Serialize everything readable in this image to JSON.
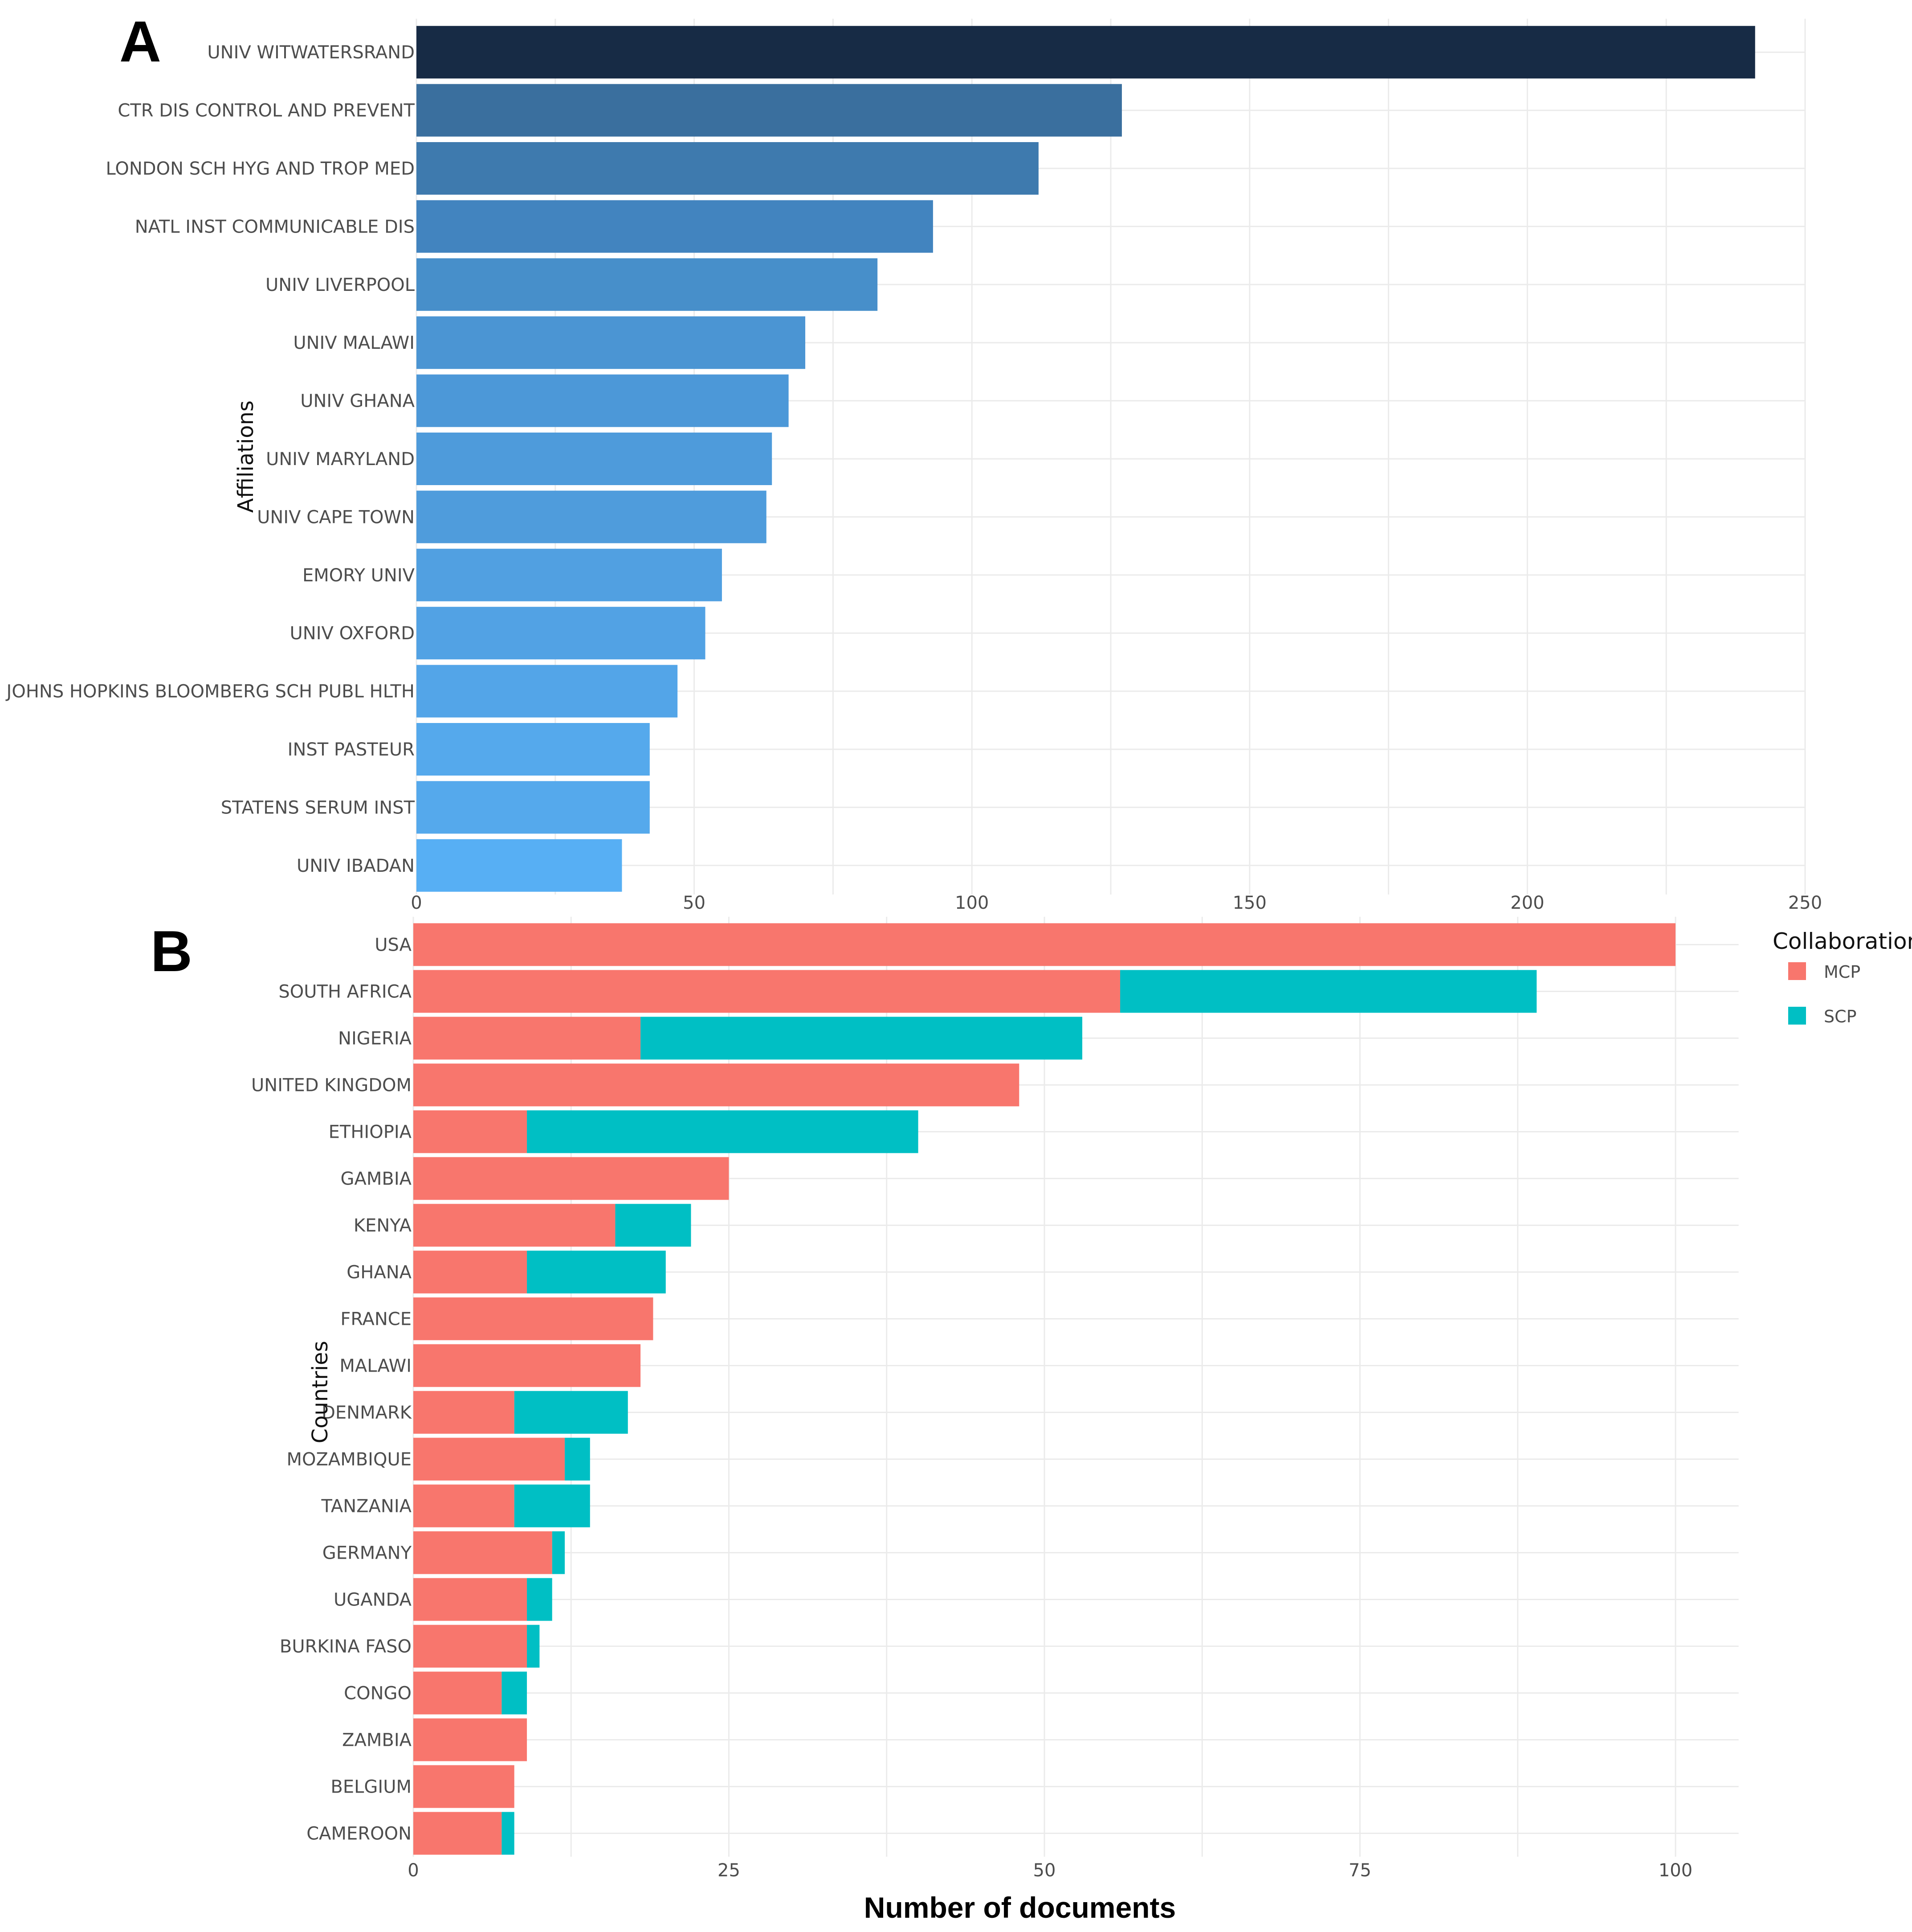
{
  "chart_data": [
    {
      "panel": "A",
      "type": "bar",
      "orientation": "horizontal",
      "ylabel": "Affiliations",
      "xlabel": "",
      "xlim": [
        0,
        250
      ],
      "xticks": [
        0,
        50,
        100,
        150,
        200,
        250
      ],
      "grid": true,
      "categories": [
        "UNIV WITWATERSRAND",
        "CTR DIS CONTROL AND PREVENT",
        "LONDON SCH HYG AND TROP MED",
        "NATL INST COMMUNICABLE DIS",
        "UNIV LIVERPOOL",
        "UNIV MALAWI",
        "UNIV GHANA",
        "UNIV MARYLAND",
        "UNIV CAPE TOWN",
        "EMORY UNIV",
        "UNIV OXFORD",
        "JOHNS HOPKINS BLOOMBERG SCH PUBL HLTH",
        "INST PASTEUR",
        "STATENS SERUM INST",
        "UNIV IBADAN"
      ],
      "values": [
        241,
        127,
        112,
        93,
        83,
        70,
        67,
        64,
        63,
        55,
        52,
        47,
        42,
        42,
        37
      ],
      "colors": [
        "#172b45",
        "#3a6f9e",
        "#3e7aae",
        "#4284bf",
        "#478fca",
        "#4b95d3",
        "#4c98d8",
        "#4e9bdb",
        "#4f9cdc",
        "#51a0e1",
        "#52a2e4",
        "#53a5e8",
        "#55a9ec",
        "#55a9ec",
        "#57aff4"
      ]
    },
    {
      "panel": "B",
      "type": "bar",
      "orientation": "horizontal",
      "stacked": true,
      "ylabel": "Countries",
      "xlabel": "Number of documents",
      "xlim": [
        0,
        105
      ],
      "xticks": [
        0,
        25,
        50,
        75,
        100
      ],
      "grid": true,
      "categories": [
        "USA",
        "SOUTH AFRICA",
        "NIGERIA",
        "UNITED KINGDOM",
        "ETHIOPIA",
        "GAMBIA",
        "KENYA",
        "GHANA",
        "FRANCE",
        "MALAWI",
        "DENMARK",
        "MOZAMBIQUE",
        "TANZANIA",
        "GERMANY",
        "UGANDA",
        "BURKINA FASO",
        "CONGO",
        "ZAMBIA",
        "BELGIUM",
        "CAMEROON"
      ],
      "series": [
        {
          "name": "MCP",
          "color": "#f8766d",
          "values": [
            100,
            56,
            18,
            48,
            9,
            25,
            16,
            9,
            19,
            18,
            8,
            12,
            8,
            11,
            9,
            9,
            7,
            9,
            8,
            7
          ]
        },
        {
          "name": "SCP",
          "color": "#00bfc4",
          "values": [
            0,
            33,
            35,
            0,
            31,
            0,
            6,
            11,
            0,
            0,
            9,
            2,
            6,
            1,
            2,
            1,
            2,
            0,
            0,
            1
          ]
        }
      ],
      "legend": {
        "title": "Collaboration",
        "position": "top-right"
      }
    }
  ]
}
